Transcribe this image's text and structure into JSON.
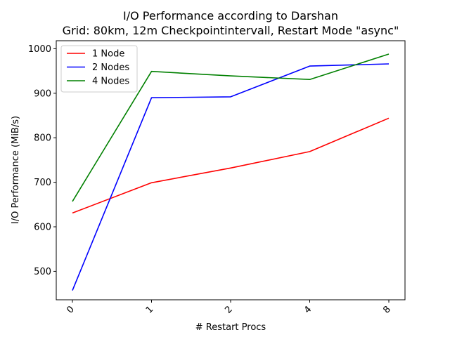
{
  "chart_data": {
    "type": "line",
    "title": "I/O Performance according to Darshan",
    "subtitle": "Grid: 80km, 12m Checkpointintervall, Restart Mode \"async\"",
    "xlabel": "# Restart Procs",
    "ylabel": "I/O Performance (MiB/s)",
    "categories": [
      "0",
      "1",
      "2",
      "4",
      "8"
    ],
    "ylim": [
      436,
      1018
    ],
    "yticks": [
      500,
      600,
      700,
      800,
      900,
      1000
    ],
    "grid": false,
    "legend_position": "top-left",
    "series": [
      {
        "name": "1 Node",
        "color": "#ff0000",
        "values": [
          631,
          699,
          732,
          769,
          844
        ]
      },
      {
        "name": "2 Nodes",
        "color": "#0000ff",
        "values": [
          457,
          890,
          892,
          961,
          966
        ]
      },
      {
        "name": "4 Nodes",
        "color": "#008000",
        "values": [
          657,
          949,
          939,
          931,
          988
        ]
      }
    ]
  }
}
